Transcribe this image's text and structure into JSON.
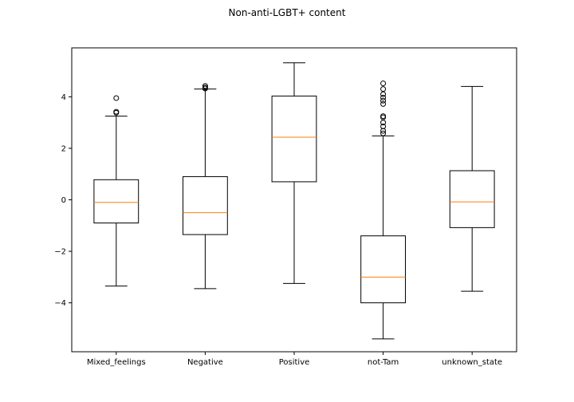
{
  "chart_data": {
    "type": "boxplot",
    "title": "Non-anti-LGBT+ content",
    "xlabel": "",
    "ylabel": "",
    "ylim": [
      -5.9,
      5.9
    ],
    "yticks": [
      -4,
      -2,
      0,
      2,
      4
    ],
    "ytick_labels": [
      "−4",
      "−2",
      "0",
      "2",
      "4"
    ],
    "grid": false,
    "colors": {
      "box": "#000000",
      "median": "#ff7f0e",
      "background": "#ffffff"
    },
    "categories": [
      "Mixed_feelings",
      "Negative",
      "Positive",
      "not-Tam",
      "unknown_state"
    ],
    "boxes": [
      {
        "label": "Mixed_feelings",
        "whislo": -3.35,
        "q1": -0.9,
        "med": -0.1,
        "q3": 0.78,
        "whishi": 3.25,
        "fliers": [
          3.38,
          3.42,
          3.95
        ]
      },
      {
        "label": "Negative",
        "whislo": -3.45,
        "q1": -1.35,
        "med": -0.5,
        "q3": 0.9,
        "whishi": 4.3,
        "fliers": [
          4.32,
          4.36,
          4.42
        ]
      },
      {
        "label": "Positive",
        "whislo": -3.25,
        "q1": 0.7,
        "med": 2.43,
        "q3": 4.03,
        "whishi": 5.32,
        "fliers": []
      },
      {
        "label": "not-Tam",
        "whislo": -5.4,
        "q1": -4.0,
        "med": -3.0,
        "q3": -1.4,
        "whishi": 2.48,
        "fliers": [
          2.58,
          2.68,
          2.85,
          3.0,
          3.2,
          3.25,
          3.72,
          3.85,
          3.97,
          4.1,
          4.3,
          4.52
        ]
      },
      {
        "label": "unknown_state",
        "whislo": -3.55,
        "q1": -1.08,
        "med": -0.08,
        "q3": 1.13,
        "whishi": 4.4,
        "fliers": []
      }
    ]
  }
}
